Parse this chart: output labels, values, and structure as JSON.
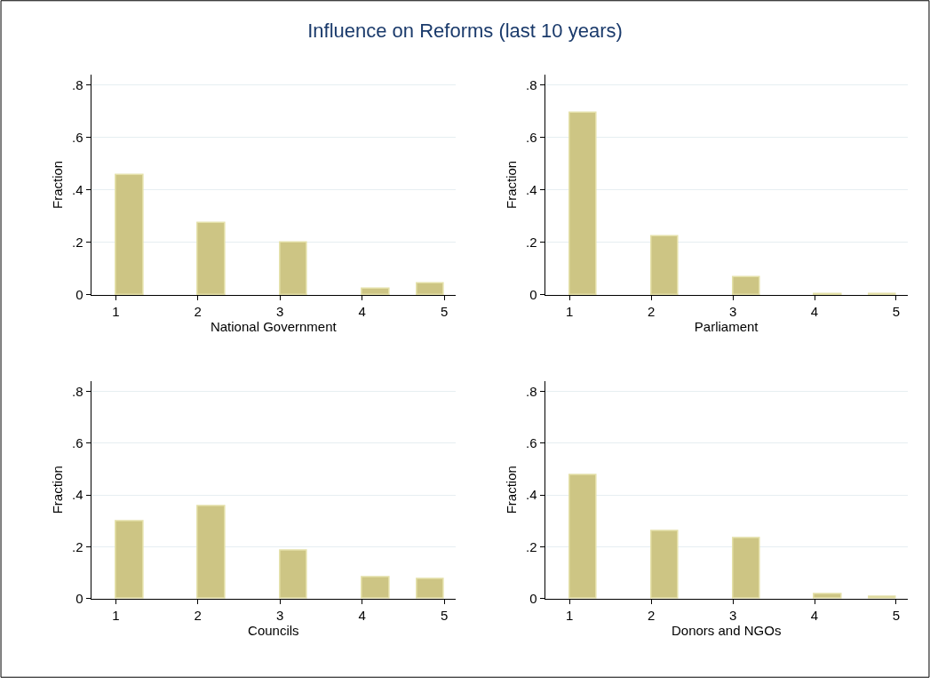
{
  "chart_data": [
    {
      "type": "histogram",
      "title": "Influence on Reforms (last 10 years)",
      "xlabel": "National Government",
      "ylabel": "Fraction",
      "color": "#cdc584",
      "bins": [
        1,
        1.333,
        1.667,
        2,
        2.333,
        2.667,
        3,
        3.333,
        3.667,
        4,
        4.333,
        4.667,
        5
      ],
      "values": [
        0.456,
        0,
        0,
        0.274,
        0,
        0,
        0.199,
        0,
        0,
        0.025,
        0,
        0.043
      ],
      "xlim": [
        0.7,
        5.14
      ],
      "ylim": [
        0,
        0.84
      ],
      "xticks": [
        1,
        2,
        3,
        4,
        5
      ],
      "yticks": [
        0,
        {
          "value": 0.2,
          "label": ".2"
        },
        {
          "value": 0.4,
          "label": ".4"
        },
        {
          "value": 0.6,
          "label": ".6"
        },
        {
          "value": 0.8,
          "label": ".8"
        }
      ],
      "grid": "y"
    },
    {
      "type": "histogram",
      "xlabel": "Parliament",
      "ylabel": "Fraction",
      "color": "#cdc584",
      "bins": [
        1,
        1.333,
        1.667,
        2,
        2.333,
        2.667,
        3,
        3.333,
        3.667,
        4,
        4.333,
        4.667,
        5
      ],
      "values": [
        0.694,
        0,
        0,
        0.223,
        0,
        0,
        0.068,
        0,
        0,
        0.005,
        0,
        0.005
      ],
      "xlim": [
        0.7,
        5.14
      ],
      "ylim": [
        0,
        0.84
      ],
      "xticks": [
        1,
        2,
        3,
        4,
        5
      ],
      "yticks": [
        0,
        {
          "value": 0.2,
          "label": ".2"
        },
        {
          "value": 0.4,
          "label": ".4"
        },
        {
          "value": 0.6,
          "label": ".6"
        },
        {
          "value": 0.8,
          "label": ".8"
        }
      ],
      "grid": "y"
    },
    {
      "type": "histogram",
      "xlabel": "Councils",
      "ylabel": "Fraction",
      "color": "#cdc584",
      "bins": [
        1,
        1.333,
        1.667,
        2,
        2.333,
        2.667,
        3,
        3.333,
        3.667,
        4,
        4.333,
        4.667,
        5
      ],
      "values": [
        0.298,
        0,
        0,
        0.356,
        0,
        0,
        0.186,
        0,
        0,
        0.081,
        0,
        0.074
      ],
      "xlim": [
        0.7,
        5.14
      ],
      "ylim": [
        0,
        0.84
      ],
      "xticks": [
        1,
        2,
        3,
        4,
        5
      ],
      "yticks": [
        0,
        {
          "value": 0.2,
          "label": ".2"
        },
        {
          "value": 0.4,
          "label": ".4"
        },
        {
          "value": 0.6,
          "label": ".6"
        },
        {
          "value": 0.8,
          "label": ".8"
        }
      ],
      "grid": "y"
    },
    {
      "type": "histogram",
      "xlabel": "Donors and NGOs",
      "ylabel": "Fraction",
      "color": "#cdc584",
      "bins": [
        1,
        1.333,
        1.667,
        2,
        2.333,
        2.667,
        3,
        3.333,
        3.667,
        4,
        4.333,
        4.667,
        5
      ],
      "values": [
        0.476,
        0,
        0,
        0.261,
        0,
        0,
        0.234,
        0,
        0,
        0.018,
        0,
        0.007
      ],
      "xlim": [
        0.7,
        5.14
      ],
      "ylim": [
        0,
        0.84
      ],
      "xticks": [
        1,
        2,
        3,
        4,
        5
      ],
      "yticks": [
        0,
        {
          "value": 0.2,
          "label": ".2"
        },
        {
          "value": 0.4,
          "label": ".4"
        },
        {
          "value": 0.6,
          "label": ".6"
        },
        {
          "value": 0.8,
          "label": ".8"
        }
      ],
      "grid": "y"
    }
  ]
}
